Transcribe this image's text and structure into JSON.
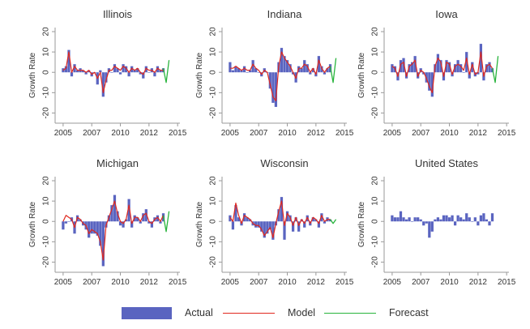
{
  "chart_data": {
    "type": "bar",
    "y_label": "Growth Rate",
    "x_ticks": [
      "2005",
      "2007",
      "2010",
      "2012",
      "2015"
    ],
    "x_tick_values": [
      2005,
      2007.5,
      2010,
      2012.5,
      2015
    ],
    "y_ticks": [
      -20,
      -10,
      0,
      10,
      20
    ],
    "ylim": [
      -25,
      22
    ],
    "xlim": [
      2004.3,
      2015.2
    ],
    "grid": false,
    "legend_position": "bottom",
    "colors": {
      "actual": "#5a64c0",
      "model": "#e0281e",
      "forecast": "#28b43c",
      "axis": "#9a9a9a",
      "text": "#333333"
    },
    "legend": [
      {
        "key": "actual",
        "label": "Actual",
        "kind": "bar"
      },
      {
        "key": "model",
        "label": "Model",
        "kind": "line"
      },
      {
        "key": "forecast",
        "label": "Forecast",
        "kind": "line"
      }
    ],
    "panels": [
      {
        "title": "Illinois",
        "x": [
          2005.0,
          2005.25,
          2005.5,
          2005.75,
          2006.0,
          2006.25,
          2006.5,
          2006.75,
          2007.0,
          2007.25,
          2007.5,
          2007.75,
          2008.0,
          2008.25,
          2008.5,
          2008.75,
          2009.0,
          2009.25,
          2009.5,
          2009.75,
          2010.0,
          2010.25,
          2010.5,
          2010.75,
          2011.0,
          2011.25,
          2011.5,
          2011.75,
          2012.0,
          2012.25,
          2012.5,
          2012.75,
          2013.0,
          2013.25,
          2013.5,
          2013.75
        ],
        "actual": [
          2,
          3,
          11,
          -2,
          4,
          1,
          2,
          1,
          -1,
          1,
          -2,
          0,
          -6,
          1,
          -12,
          -5,
          2,
          0,
          4,
          2,
          -1,
          4,
          3,
          -2,
          3,
          1,
          2,
          -1,
          -3,
          3,
          0,
          2,
          -2,
          3,
          1,
          2
        ],
        "model": [
          1,
          2,
          10,
          0,
          3,
          1,
          1,
          1,
          0,
          1,
          -1,
          0,
          -3,
          0,
          -10,
          -4,
          1,
          1,
          3,
          2,
          1,
          3,
          2,
          0,
          2,
          1,
          2,
          0,
          -1,
          2,
          1,
          1,
          0,
          2,
          1,
          1
        ],
        "forecast_x": [
          2013.75,
          2014.0,
          2014.25
        ],
        "forecast": [
          2,
          -5,
          6
        ]
      },
      {
        "title": "Indiana",
        "x": [
          2005.0,
          2005.25,
          2005.5,
          2005.75,
          2006.0,
          2006.25,
          2006.5,
          2006.75,
          2007.0,
          2007.25,
          2007.5,
          2007.75,
          2008.0,
          2008.25,
          2008.5,
          2008.75,
          2009.0,
          2009.25,
          2009.5,
          2009.75,
          2010.0,
          2010.25,
          2010.5,
          2010.75,
          2011.0,
          2011.25,
          2011.5,
          2011.75,
          2012.0,
          2012.25,
          2012.5,
          2012.75,
          2013.0,
          2013.25,
          2013.5,
          2013.75
        ],
        "actual": [
          5,
          1,
          3,
          2,
          1,
          3,
          0,
          1,
          6,
          2,
          0,
          -2,
          2,
          0,
          -8,
          -15,
          -17,
          5,
          12,
          8,
          6,
          4,
          -1,
          -5,
          3,
          2,
          6,
          4,
          -1,
          2,
          -2,
          8,
          3,
          -1,
          2,
          4
        ],
        "model": [
          2,
          2,
          3,
          2,
          1,
          2,
          1,
          1,
          4,
          2,
          1,
          -1,
          1,
          0,
          -6,
          -12,
          -14,
          3,
          10,
          7,
          5,
          3,
          0,
          -3,
          2,
          2,
          4,
          3,
          0,
          2,
          -1,
          6,
          2,
          0,
          2,
          3
        ],
        "forecast_x": [
          2013.75,
          2014.0,
          2014.25
        ],
        "forecast": [
          3,
          -5,
          7
        ]
      },
      {
        "title": "Iowa",
        "x": [
          2005.0,
          2005.25,
          2005.5,
          2005.75,
          2006.0,
          2006.25,
          2006.5,
          2006.75,
          2007.0,
          2007.25,
          2007.5,
          2007.75,
          2008.0,
          2008.25,
          2008.5,
          2008.75,
          2009.0,
          2009.25,
          2009.5,
          2009.75,
          2010.0,
          2010.25,
          2010.5,
          2010.75,
          2011.0,
          2011.25,
          2011.5,
          2011.75,
          2012.0,
          2012.25,
          2012.5,
          2012.75,
          2013.0,
          2013.25,
          2013.5,
          2013.75
        ],
        "actual": [
          4,
          3,
          -4,
          6,
          7,
          -3,
          4,
          5,
          8,
          -3,
          2,
          -1,
          -5,
          -9,
          -12,
          4,
          9,
          6,
          -4,
          6,
          5,
          -2,
          4,
          6,
          4,
          0,
          10,
          -3,
          5,
          -2,
          -1,
          14,
          -4,
          4,
          5,
          2
        ],
        "model": [
          3,
          2,
          -2,
          4,
          5,
          -2,
          3,
          4,
          6,
          -2,
          1,
          0,
          -3,
          -7,
          -10,
          3,
          7,
          5,
          -2,
          5,
          4,
          -1,
          3,
          4,
          3,
          1,
          7,
          -1,
          4,
          -1,
          0,
          10,
          -2,
          3,
          4,
          2
        ],
        "forecast_x": [
          2013.75,
          2014.0,
          2014.25
        ],
        "forecast": [
          2,
          -5,
          8
        ]
      },
      {
        "title": "Michigan",
        "x": [
          2005.0,
          2005.25,
          2005.5,
          2005.75,
          2006.0,
          2006.25,
          2006.5,
          2006.75,
          2007.0,
          2007.25,
          2007.5,
          2007.75,
          2008.0,
          2008.25,
          2008.5,
          2008.75,
          2009.0,
          2009.25,
          2009.5,
          2009.75,
          2010.0,
          2010.25,
          2010.5,
          2010.75,
          2011.0,
          2011.25,
          2011.5,
          2011.75,
          2012.0,
          2012.25,
          2012.5,
          2012.75,
          2013.0,
          2013.25,
          2013.5,
          2013.75
        ],
        "actual": [
          -4,
          -1,
          0,
          2,
          -6,
          3,
          1,
          -2,
          -4,
          -8,
          -6,
          -6,
          -7,
          -12,
          -22,
          -3,
          3,
          8,
          13,
          5,
          -2,
          -3,
          1,
          11,
          -3,
          3,
          2,
          -1,
          4,
          6,
          -1,
          -3,
          2,
          3,
          -1,
          4
        ],
        "model": [
          0,
          3,
          2,
          1,
          -3,
          2,
          1,
          -1,
          -2,
          -6,
          -4,
          -5,
          -6,
          -10,
          -19,
          -2,
          2,
          6,
          10,
          4,
          0,
          -1,
          1,
          8,
          -1,
          2,
          2,
          0,
          3,
          4,
          0,
          -1,
          1,
          2,
          0,
          3
        ],
        "forecast_x": [
          2013.75,
          2014.0,
          2014.25
        ],
        "forecast": [
          3,
          -5,
          5
        ]
      },
      {
        "title": "Wisconsin",
        "x": [
          2005.0,
          2005.25,
          2005.5,
          2005.75,
          2006.0,
          2006.25,
          2006.5,
          2006.75,
          2007.0,
          2007.25,
          2007.5,
          2007.75,
          2008.0,
          2008.25,
          2008.5,
          2008.75,
          2009.0,
          2009.25,
          2009.5,
          2009.75,
          2010.0,
          2010.25,
          2010.5,
          2010.75,
          2011.0,
          2011.25,
          2011.5,
          2011.75,
          2012.0,
          2012.25,
          2012.5,
          2012.75,
          2013.0,
          2013.25,
          2013.5,
          2013.75
        ],
        "actual": [
          3,
          -4,
          8,
          2,
          -2,
          4,
          2,
          1,
          -2,
          -3,
          -3,
          -5,
          -8,
          -6,
          -4,
          -9,
          -2,
          6,
          12,
          -9,
          5,
          3,
          -5,
          2,
          -5,
          1,
          -3,
          3,
          -2,
          2,
          1,
          -3,
          4,
          -1,
          2,
          1
        ],
        "model": [
          2,
          0,
          9,
          3,
          -1,
          3,
          2,
          1,
          -1,
          -2,
          -2,
          -4,
          -7,
          -5,
          -3,
          -8,
          -1,
          5,
          10,
          -2,
          4,
          2,
          -2,
          2,
          -2,
          1,
          -1,
          2,
          -1,
          2,
          1,
          -1,
          3,
          0,
          1,
          1
        ],
        "forecast_x": [
          2013.75,
          2014.0,
          2014.25
        ],
        "forecast": [
          1,
          -1,
          1
        ]
      },
      {
        "title": "United States",
        "x": [
          2005.0,
          2005.25,
          2005.5,
          2005.75,
          2006.0,
          2006.25,
          2006.5,
          2006.75,
          2007.0,
          2007.25,
          2007.5,
          2007.75,
          2008.0,
          2008.25,
          2008.5,
          2008.75,
          2009.0,
          2009.25,
          2009.5,
          2009.75,
          2010.0,
          2010.25,
          2010.5,
          2010.75,
          2011.0,
          2011.25,
          2011.5,
          2011.75,
          2012.0,
          2012.25,
          2012.5,
          2012.75,
          2013.0,
          2013.25,
          2013.5,
          2013.75
        ],
        "actual": [
          3,
          2,
          2,
          5,
          2,
          1,
          2,
          0,
          2,
          2,
          1,
          -2,
          -1,
          -8,
          -5,
          1,
          2,
          1,
          3,
          3,
          2,
          3,
          -2,
          3,
          2,
          1,
          4,
          2,
          0,
          2,
          -2,
          3,
          4,
          1,
          -2,
          4
        ],
        "model": [],
        "forecast_x": [],
        "forecast": []
      }
    ]
  }
}
